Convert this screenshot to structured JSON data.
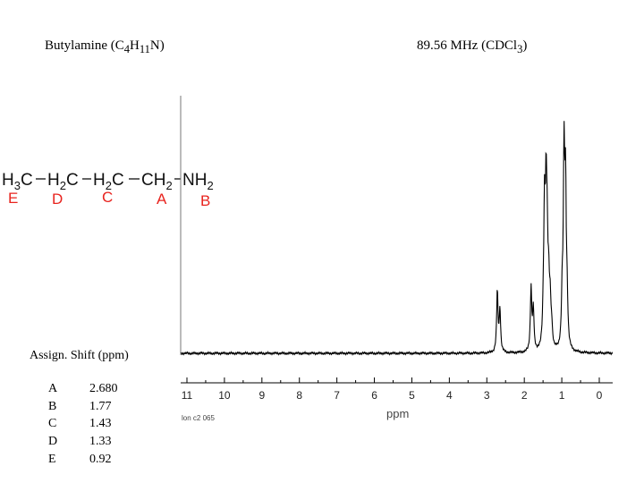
{
  "title": {
    "compound_name": "Butylamine (C",
    "formula_c_sub": "4",
    "formula_h": "H",
    "formula_h_sub": "11",
    "formula_tail": "N)",
    "freq": "89.56 MHz (CDCl",
    "solvent_sub": "3",
    "solvent_tail": ")"
  },
  "structure": {
    "groups": [
      {
        "main": "H",
        "sub": "3",
        "tail": "C",
        "label": "E"
      },
      {
        "main": "H",
        "sub": "2",
        "tail": "C",
        "label": "D"
      },
      {
        "main": "H",
        "sub": "2",
        "tail": "C",
        "label": "C"
      },
      {
        "main": "CH",
        "sub": "2",
        "tail": "",
        "label": "A"
      },
      {
        "main": "NH",
        "sub": "2",
        "tail": "",
        "label": "B"
      }
    ],
    "label_color": "#e8231e"
  },
  "assignments": {
    "header": "Assign.  Shift (ppm)",
    "rows": [
      {
        "label": "A",
        "shift": "2.680"
      },
      {
        "label": "B",
        "shift": "1.77"
      },
      {
        "label": "C",
        "shift": "1.43"
      },
      {
        "label": "D",
        "shift": "1.33"
      },
      {
        "label": "E",
        "shift": "0.92"
      }
    ]
  },
  "chart_data": {
    "type": "line",
    "x_direction": "decreasing",
    "xlim": [
      11,
      0
    ],
    "ticks": [
      "11",
      "10",
      "9",
      "8",
      "7",
      "6",
      "5",
      "4",
      "3",
      "2",
      "1",
      "0"
    ],
    "xlabel": "ppm",
    "footnote": "lon c2 065",
    "ylim": [
      0,
      1
    ],
    "peaks": [
      {
        "x": 2.72,
        "y": 0.26
      },
      {
        "x": 2.65,
        "y": 0.18
      },
      {
        "x": 1.82,
        "y": 0.27
      },
      {
        "x": 1.76,
        "y": 0.17
      },
      {
        "x": 1.49,
        "y": 0.14
      },
      {
        "x": 1.46,
        "y": 0.52
      },
      {
        "x": 1.42,
        "y": 0.57
      },
      {
        "x": 1.39,
        "y": 0.37
      },
      {
        "x": 1.35,
        "y": 0.23
      },
      {
        "x": 1.31,
        "y": 0.18
      },
      {
        "x": 1.27,
        "y": 0.08
      },
      {
        "x": 0.99,
        "y": 0.21
      },
      {
        "x": 0.94,
        "y": 0.78
      },
      {
        "x": 0.9,
        "y": 0.62
      },
      {
        "x": 0.86,
        "y": 0.18
      }
    ]
  }
}
